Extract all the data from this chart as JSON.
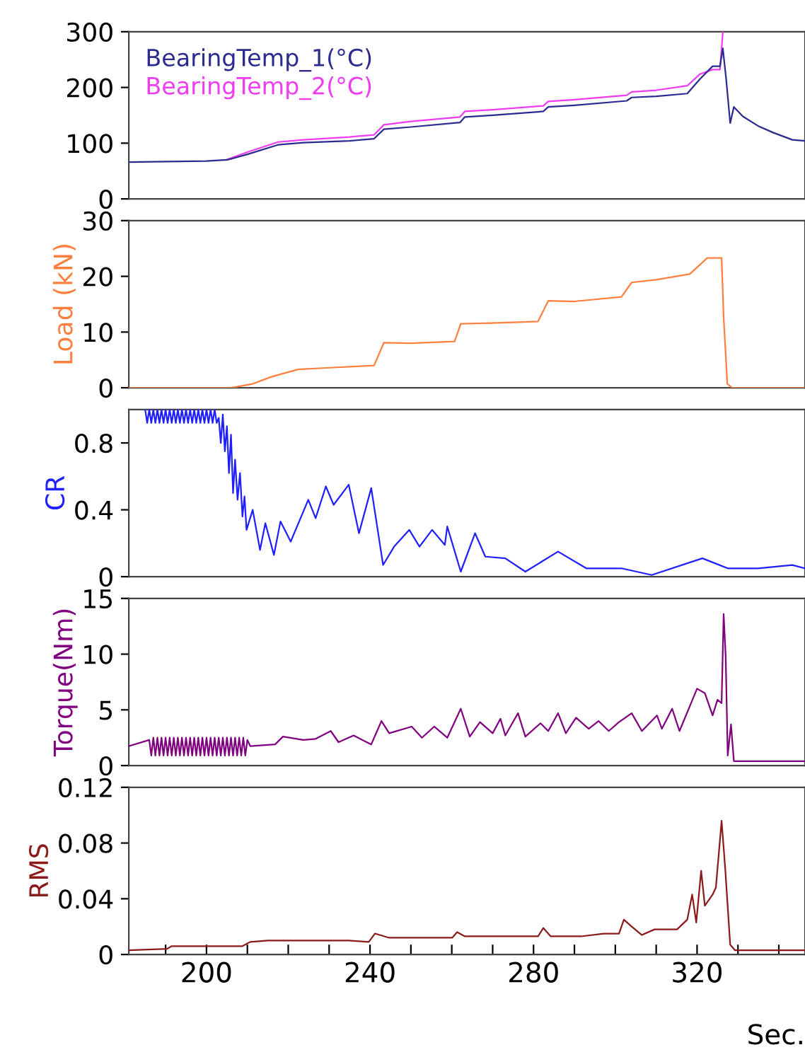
{
  "chart_data": [
    {
      "type": "line",
      "xlim": [
        181,
        346.4
      ],
      "ylim": [
        0,
        300
      ],
      "yticks": [
        0,
        100,
        200,
        300
      ],
      "tick_labels": "y",
      "grid": false,
      "legend": "top left",
      "series": [
        {
          "name": "BearingTemp_1(°C)",
          "color": "#2b2b8f",
          "x": [
            181,
            190,
            200,
            205.1,
            210,
            217.5,
            223.7,
            235,
            241,
            243.4,
            250,
            262,
            263.2,
            270,
            282.4,
            283.6,
            290,
            302.8,
            304,
            310,
            317.6,
            320.7,
            323.8,
            325.6,
            326.3,
            327.1,
            328.1,
            329,
            331.2,
            334.9,
            338.6,
            343.3,
            346.4
          ],
          "values": [
            66,
            67,
            68,
            70,
            80,
            97,
            101,
            104,
            108,
            125,
            129,
            137,
            147,
            150,
            157,
            165,
            168,
            176,
            182,
            184,
            189,
            215,
            238,
            238,
            270,
            216,
            136,
            165,
            148,
            131,
            119,
            106,
            104
          ]
        },
        {
          "name": "BearingTemp_2(°C)",
          "color": "#f03cf0",
          "x": [
            205.1,
            210,
            217.5,
            223.7,
            235,
            241,
            243.4,
            250,
            262,
            263.2,
            270,
            282.4,
            283.6,
            290,
            302.8,
            304,
            310,
            317.6,
            320.7,
            323.8,
            325.6,
            326.3
          ],
          "values": [
            71,
            84,
            102,
            106,
            111,
            115,
            133,
            139,
            147,
            157,
            160,
            167,
            175,
            178,
            186,
            192,
            195,
            203,
            224,
            232,
            232,
            299
          ]
        }
      ]
    },
    {
      "type": "line",
      "xlim": [
        181,
        346.4
      ],
      "ylim": [
        0,
        30
      ],
      "yticks": [
        0,
        10,
        20,
        30
      ],
      "tick_labels": "y",
      "ylabel": "Load (kN)",
      "grid": false,
      "series": [
        {
          "color": "#ff7f3f",
          "x": [
            181,
            206,
            211.3,
            216,
            222.4,
            230,
            241,
            243.4,
            250,
            260.7,
            262.2,
            270,
            281.1,
            283.6,
            290,
            301.5,
            304,
            310,
            318.2,
            322.5,
            326,
            326.5,
            327.4,
            328.6,
            346.4
          ],
          "values": [
            0,
            0,
            0.7,
            2.0,
            3.3,
            3.6,
            4.0,
            8.1,
            8.0,
            8.3,
            11.5,
            11.6,
            11.9,
            15.6,
            15.5,
            16.3,
            18.9,
            19.4,
            20.4,
            23.3,
            23.3,
            12.7,
            0.7,
            0,
            0
          ]
        }
      ]
    },
    {
      "type": "line",
      "xlim": [
        181,
        346.4
      ],
      "ylim": [
        0,
        1.0
      ],
      "yticks": [
        0,
        0.4,
        0.8
      ],
      "tick_labels": "y",
      "ylabel": "CR",
      "grid": false,
      "series": [
        {
          "color": "#1f1fff",
          "x": [
            185,
            185.5,
            186,
            186.5,
            187,
            187.5,
            188,
            188.5,
            189,
            189.5,
            190,
            190.5,
            191,
            191.5,
            192,
            192.5,
            193,
            193.5,
            194,
            194.5,
            195,
            195.5,
            196,
            196.5,
            197,
            197.5,
            198,
            198.5,
            199,
            199.5,
            200,
            200.5,
            201,
            201.5,
            202,
            202.5,
            203,
            203.5,
            204,
            204.5,
            205,
            205.5,
            206,
            206.5,
            207,
            207.6,
            208.2,
            208.8,
            209.3,
            209.8,
            211.3,
            213.1,
            214.4,
            216.5,
            218.1,
            220.6,
            224.9,
            226.7,
            229.2,
            231.1,
            234.8,
            237.3,
            240.3,
            243.2,
            245.9,
            249.6,
            252.1,
            255.2,
            258.3,
            258.9,
            262.2,
            265.7,
            268.2,
            273.1,
            278,
            286,
            292.9,
            301.5,
            308.9,
            321.3,
            327.5,
            334.9,
            343.3,
            346.4
          ],
          "values": [
            1.0,
            0.92,
            1.0,
            0.92,
            1.0,
            0.92,
            1.0,
            0.92,
            1.0,
            0.92,
            1.0,
            0.92,
            1.0,
            0.92,
            1.0,
            0.92,
            1.0,
            0.92,
            1.0,
            0.92,
            1.0,
            0.92,
            1.0,
            0.92,
            1.0,
            0.92,
            1.0,
            0.92,
            1.0,
            0.92,
            1.0,
            0.92,
            1.0,
            0.92,
            1.0,
            0.92,
            0.95,
            0.8,
            0.97,
            0.75,
            0.9,
            0.62,
            0.85,
            0.5,
            0.7,
            0.46,
            0.62,
            0.36,
            0.48,
            0.28,
            0.4,
            0.16,
            0.32,
            0.13,
            0.33,
            0.21,
            0.46,
            0.35,
            0.54,
            0.43,
            0.55,
            0.26,
            0.53,
            0.07,
            0.18,
            0.28,
            0.18,
            0.28,
            0.19,
            0.3,
            0.03,
            0.26,
            0.12,
            0.11,
            0.03,
            0.15,
            0.05,
            0.05,
            0.01,
            0.11,
            0.05,
            0.05,
            0.07,
            0.05
          ]
        }
      ]
    },
    {
      "type": "line",
      "xlim": [
        181,
        346.4
      ],
      "ylim": [
        0,
        15
      ],
      "yticks": [
        0,
        5,
        10,
        15
      ],
      "tick_labels": "y",
      "ylabel": "Torque(Nm)",
      "grid": false,
      "series": [
        {
          "color": "#800080",
          "x": [
            181,
            186,
            186.5,
            187,
            187.5,
            188,
            188.5,
            189,
            189.5,
            190,
            190.5,
            191,
            191.5,
            192,
            192.5,
            193,
            193.5,
            194,
            194.5,
            195,
            195.5,
            196,
            196.5,
            197,
            197.5,
            198,
            198.5,
            199,
            199.5,
            200,
            200.5,
            201,
            201.5,
            202,
            202.5,
            203,
            203.5,
            204,
            204.5,
            205,
            205.5,
            206,
            206.5,
            207,
            207.5,
            208,
            208.5,
            209,
            209.5,
            210,
            210.7,
            216.8,
            218.7,
            223.7,
            226.7,
            230.4,
            232.3,
            236,
            240.3,
            242.8,
            244.7,
            250.2,
            252.7,
            255.7,
            258.9,
            262.2,
            264.4,
            266.9,
            270,
            271.9,
            273.1,
            276.2,
            278,
            281.7,
            283.6,
            286,
            287.9,
            290.4,
            293.5,
            295.9,
            298.4,
            300.9,
            304,
            306.5,
            310.2,
            311.4,
            313.9,
            315.7,
            320,
            321.9,
            323.8,
            325,
            326,
            326.5,
            327,
            327.5,
            328.3,
            329,
            346.4
          ],
          "values": [
            1.75,
            2.3,
            0.9,
            2.5,
            0.9,
            2.5,
            0.9,
            2.5,
            0.9,
            2.5,
            0.9,
            2.5,
            0.9,
            2.5,
            0.9,
            2.5,
            0.9,
            2.5,
            0.9,
            2.5,
            0.9,
            2.5,
            0.9,
            2.5,
            0.9,
            2.5,
            0.9,
            2.5,
            0.9,
            2.5,
            0.9,
            2.5,
            0.9,
            2.5,
            0.9,
            2.5,
            0.9,
            2.5,
            0.9,
            2.5,
            0.9,
            2.5,
            0.9,
            2.5,
            0.9,
            2.5,
            0.9,
            2.5,
            0.9,
            2.3,
            1.75,
            1.9,
            2.6,
            2.3,
            2.4,
            3.1,
            2.1,
            2.7,
            1.9,
            4.0,
            2.9,
            3.5,
            2.5,
            3.5,
            2.5,
            5.1,
            2.6,
            3.9,
            2.9,
            4.2,
            2.7,
            4.7,
            2.6,
            3.8,
            3.1,
            4.7,
            2.9,
            4.3,
            3.3,
            4.0,
            3.1,
            3.9,
            4.7,
            3.1,
            4.5,
            3.3,
            5.1,
            3.1,
            6.9,
            6.5,
            4.5,
            5.9,
            5.6,
            13.6,
            9.8,
            0.9,
            3.7,
            0.4,
            0.4
          ]
        }
      ]
    },
    {
      "type": "line",
      "xlim": [
        181,
        346.4
      ],
      "ylim": [
        0,
        0.12
      ],
      "yticks": [
        0,
        0.04,
        0.08,
        0.12
      ],
      "xticks": [
        {
          "value": 190,
          "label": null
        },
        200,
        {
          "value": 210,
          "label": null
        },
        {
          "value": 220,
          "label": null
        },
        {
          "value": 230,
          "label": null
        },
        240,
        {
          "value": 250,
          "label": null
        },
        {
          "value": 260,
          "label": null
        },
        {
          "value": 270,
          "label": null
        },
        280,
        {
          "value": 290,
          "label": null
        },
        {
          "value": 300,
          "label": null
        },
        {
          "value": 310,
          "label": null
        },
        320,
        {
          "value": 330,
          "label": null
        },
        {
          "value": 340,
          "label": null
        }
      ],
      "ylabel": "RMS",
      "xlabel": "Sec.",
      "grid": false,
      "series": [
        {
          "color": "#8b1a1a",
          "x": [
            181,
            190.3,
            191.5,
            208.8,
            210.7,
            215,
            234.8,
            239.7,
            241.2,
            244.7,
            260.1,
            261.3,
            263.2,
            281.1,
            282.4,
            284.2,
            291.6,
            297.2,
            300.9,
            302.1,
            304,
            306.5,
            309.6,
            315.1,
            317.6,
            318.8,
            319.8,
            321,
            321.9,
            323.8,
            324.6,
            326,
            326.9,
            328.1,
            329.3,
            346.4
          ],
          "values": [
            0.003,
            0.004,
            0.006,
            0.006,
            0.009,
            0.01,
            0.01,
            0.009,
            0.015,
            0.012,
            0.012,
            0.016,
            0.013,
            0.013,
            0.019,
            0.013,
            0.013,
            0.015,
            0.015,
            0.025,
            0.02,
            0.014,
            0.018,
            0.018,
            0.025,
            0.043,
            0.023,
            0.06,
            0.035,
            0.043,
            0.048,
            0.096,
            0.061,
            0.007,
            0.003,
            0.003
          ]
        }
      ]
    }
  ]
}
